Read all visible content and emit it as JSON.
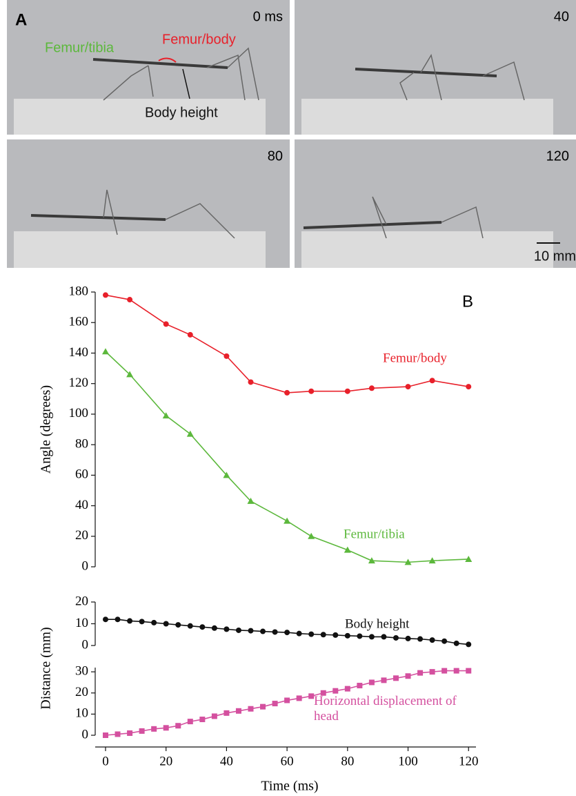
{
  "photo_panel": {
    "panel_label": "A",
    "frame_labels": [
      "0 ms",
      "40",
      "80",
      "120"
    ],
    "annotations": {
      "femur_tibia": "Femur/tibia",
      "femur_body": "Femur/body",
      "body_height": "Body height",
      "scale_bar": "10 mm"
    }
  },
  "panel_label": "B",
  "chart_data": [
    {
      "type": "line",
      "ylabel": "Angle (degrees)",
      "ylim": [
        0,
        180
      ],
      "yticks": [
        0,
        20,
        40,
        60,
        80,
        100,
        120,
        140,
        160,
        180
      ],
      "x": [
        0,
        8,
        20,
        28,
        40,
        48,
        60,
        68,
        80,
        88,
        100,
        108,
        120
      ],
      "series": [
        {
          "name": "Femur/body",
          "color": "#e8202a",
          "marker": "circle",
          "values": [
            178,
            175,
            159,
            152,
            138,
            121,
            114,
            115,
            115,
            117,
            118,
            122,
            118
          ]
        },
        {
          "name": "Femur/tibia",
          "color": "#5cb83c",
          "marker": "triangle",
          "values": [
            141,
            126,
            99,
            87,
            60,
            43,
            30,
            20,
            11,
            4,
            3,
            4,
            5
          ]
        }
      ]
    },
    {
      "type": "line",
      "ylabel": "Distance (mm)",
      "ylim": [
        0,
        20
      ],
      "yticks": [
        0,
        10,
        20
      ],
      "x": [
        0,
        4,
        8,
        12,
        16,
        20,
        24,
        28,
        32,
        36,
        40,
        44,
        48,
        52,
        56,
        60,
        64,
        68,
        72,
        76,
        80,
        84,
        88,
        92,
        96,
        100,
        104,
        108,
        112,
        116,
        120
      ],
      "series": [
        {
          "name": "Body height",
          "color": "#111111",
          "marker": "circle",
          "values": [
            12,
            12,
            11.3,
            11,
            10.5,
            10,
            9.5,
            9,
            8.5,
            8,
            7.5,
            7,
            6.8,
            6.5,
            6.2,
            6,
            5.5,
            5.2,
            5,
            4.8,
            4.5,
            4.3,
            4,
            4,
            3.5,
            3.2,
            3,
            2.5,
            2,
            1,
            0.5
          ]
        }
      ]
    },
    {
      "type": "line",
      "xlabel": "Time (ms)",
      "xlim": [
        0,
        122
      ],
      "xticks": [
        0,
        20,
        40,
        60,
        80,
        100,
        120
      ],
      "ylim": [
        0,
        32
      ],
      "yticks": [
        0,
        10,
        20,
        30
      ],
      "x": [
        0,
        4,
        8,
        12,
        16,
        20,
        24,
        28,
        32,
        36,
        40,
        44,
        48,
        52,
        56,
        60,
        64,
        68,
        72,
        76,
        80,
        84,
        88,
        92,
        96,
        100,
        104,
        108,
        112,
        116,
        120
      ],
      "series": [
        {
          "name": "Horizontal displacement of head",
          "color": "#d4509f",
          "marker": "square",
          "values": [
            0,
            0.5,
            1,
            2,
            3,
            3.5,
            4.5,
            6.5,
            7.5,
            9,
            10.5,
            11.5,
            12.5,
            13.5,
            15,
            16.5,
            17.5,
            18.5,
            20,
            21,
            22,
            23.5,
            25,
            26,
            27,
            28,
            29.5,
            30,
            30.5,
            30.5,
            30.5
          ]
        }
      ]
    }
  ]
}
